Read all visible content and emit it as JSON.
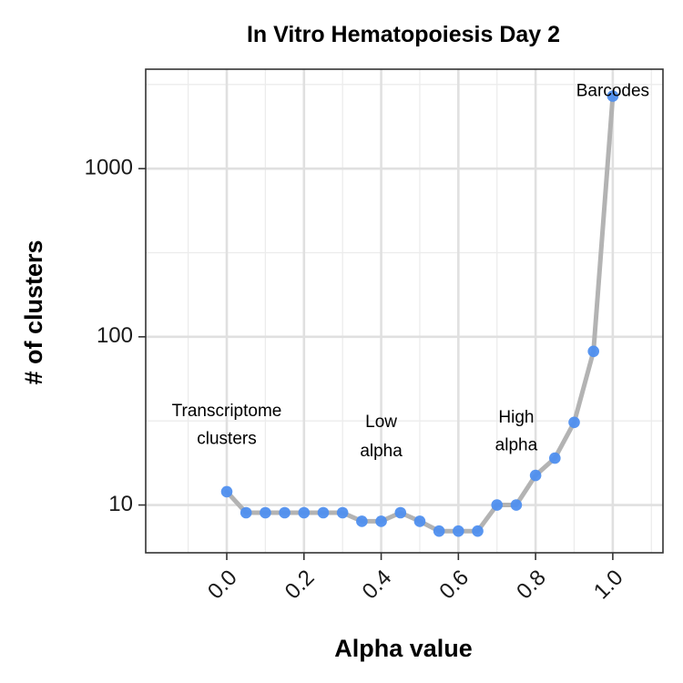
{
  "chart_data": {
    "type": "line",
    "title": "In Vitro Hematopoiesis Day 2",
    "xlabel": "Alpha value",
    "ylabel": "# of clusters",
    "xlim": [
      -0.21,
      1.13
    ],
    "ylim": [
      5.2,
      3900
    ],
    "y_scale": "log",
    "grid": true,
    "legend": "none",
    "x_ticks": [
      0.0,
      0.2,
      0.4,
      0.6,
      0.8,
      1.0
    ],
    "x_tick_labels": [
      "0.0",
      "0.2",
      "0.4",
      "0.6",
      "0.8",
      "1.0"
    ],
    "y_ticks": [
      10,
      100,
      1000
    ],
    "y_tick_labels": [
      "10",
      "100",
      "1000"
    ],
    "series": [
      {
        "x": [
          0.0,
          0.05,
          0.1,
          0.15,
          0.2,
          0.25,
          0.3,
          0.35,
          0.4,
          0.45,
          0.5,
          0.55,
          0.6,
          0.65,
          0.7,
          0.75,
          0.8,
          0.85,
          0.9,
          0.95,
          1.0
        ],
        "values": [
          12,
          9,
          9,
          9,
          9,
          9,
          9,
          8,
          8,
          9,
          8,
          7,
          7,
          7,
          10,
          10,
          15,
          19,
          31,
          82,
          2700
        ],
        "line_color": "#b3b3b3",
        "marker_color": "#4f8fef"
      }
    ],
    "annotations": [
      {
        "lines": [
          "Transcriptome",
          "clusters"
        ],
        "x": 0.0,
        "y": [
          36,
          24.5
        ]
      },
      {
        "lines": [
          "Low",
          "alpha"
        ],
        "x": 0.4,
        "y": [
          31,
          20.8
        ]
      },
      {
        "lines": [
          "High",
          "alpha"
        ],
        "x": 0.75,
        "y": [
          33,
          22.5
        ]
      },
      {
        "lines": [
          "Barcodes"
        ],
        "x": 1.0,
        "y": [
          2870
        ]
      }
    ]
  }
}
